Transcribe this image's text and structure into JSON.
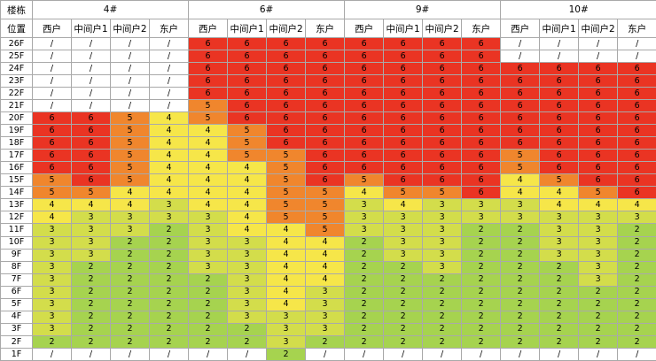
{
  "table": {
    "corner_top": "楼栋",
    "corner_bottom": "位置",
    "buildings": [
      "4#",
      "6#",
      "9#",
      "10#"
    ],
    "units": [
      "西户",
      "中间户1",
      "中间户2",
      "东户"
    ]
  },
  "value_colors": {
    "6": "#ea3423",
    "5": "#f0862d",
    "4": "#f6e649",
    "3": "#d3dd4b",
    "2": "#a6d34f",
    "/": "#ffffff"
  },
  "chart_data": {
    "type": "heatmap",
    "x_groups": [
      "4#",
      "6#",
      "9#",
      "10#"
    ],
    "x_sub": [
      "西户",
      "中间户1",
      "中间户2",
      "东户"
    ],
    "y": [
      "26F",
      "25F",
      "24F",
      "23F",
      "22F",
      "21F",
      "20F",
      "19F",
      "18F",
      "17F",
      "16F",
      "15F",
      "14F",
      "13F",
      "12F",
      "11F",
      "10F",
      "9F",
      "8F",
      "7F",
      "6F",
      "5F",
      "4F",
      "3F",
      "2F",
      "1F"
    ],
    "values": [
      [
        "/",
        "/",
        "/",
        "/",
        "6",
        "6",
        "6",
        "6",
        "6",
        "6",
        "6",
        "6",
        "/",
        "/",
        "/",
        "/"
      ],
      [
        "/",
        "/",
        "/",
        "/",
        "6",
        "6",
        "6",
        "6",
        "6",
        "6",
        "6",
        "6",
        "/",
        "/",
        "/",
        "/"
      ],
      [
        "/",
        "/",
        "/",
        "/",
        "6",
        "6",
        "6",
        "6",
        "6",
        "6",
        "6",
        "6",
        "6",
        "6",
        "6",
        "6"
      ],
      [
        "/",
        "/",
        "/",
        "/",
        "6",
        "6",
        "6",
        "6",
        "6",
        "6",
        "6",
        "6",
        "6",
        "6",
        "6",
        "6"
      ],
      [
        "/",
        "/",
        "/",
        "/",
        "6",
        "6",
        "6",
        "6",
        "6",
        "6",
        "6",
        "6",
        "6",
        "6",
        "6",
        "6"
      ],
      [
        "/",
        "/",
        "/",
        "/",
        "5",
        "6",
        "6",
        "6",
        "6",
        "6",
        "6",
        "6",
        "6",
        "6",
        "6",
        "6"
      ],
      [
        "6",
        "6",
        "5",
        "4",
        "5",
        "6",
        "6",
        "6",
        "6",
        "6",
        "6",
        "6",
        "6",
        "6",
        "6",
        "6"
      ],
      [
        "6",
        "6",
        "5",
        "4",
        "4",
        "5",
        "6",
        "6",
        "6",
        "6",
        "6",
        "6",
        "6",
        "6",
        "6",
        "6"
      ],
      [
        "6",
        "6",
        "5",
        "4",
        "4",
        "5",
        "6",
        "6",
        "6",
        "6",
        "6",
        "6",
        "6",
        "6",
        "6",
        "6"
      ],
      [
        "6",
        "6",
        "5",
        "4",
        "4",
        "5",
        "5",
        "6",
        "6",
        "6",
        "6",
        "6",
        "5",
        "6",
        "6",
        "6"
      ],
      [
        "6",
        "6",
        "5",
        "4",
        "4",
        "4",
        "5",
        "6",
        "6",
        "6",
        "6",
        "6",
        "5",
        "6",
        "6",
        "6"
      ],
      [
        "5",
        "6",
        "5",
        "4",
        "4",
        "4",
        "5",
        "6",
        "5",
        "6",
        "6",
        "6",
        "4",
        "5",
        "6",
        "6"
      ],
      [
        "5",
        "5",
        "4",
        "4",
        "4",
        "4",
        "5",
        "5",
        "4",
        "5",
        "5",
        "6",
        "4",
        "4",
        "5",
        "6"
      ],
      [
        "4",
        "4",
        "4",
        "3",
        "4",
        "4",
        "5",
        "5",
        "3",
        "4",
        "3",
        "3",
        "3",
        "4",
        "4",
        "4"
      ],
      [
        "4",
        "3",
        "3",
        "3",
        "3",
        "4",
        "5",
        "5",
        "3",
        "3",
        "3",
        "3",
        "3",
        "3",
        "3",
        "3"
      ],
      [
        "3",
        "3",
        "3",
        "2",
        "3",
        "4",
        "4",
        "5",
        "3",
        "3",
        "3",
        "2",
        "2",
        "3",
        "3",
        "2"
      ],
      [
        "3",
        "3",
        "2",
        "2",
        "3",
        "3",
        "4",
        "4",
        "2",
        "3",
        "3",
        "2",
        "2",
        "3",
        "3",
        "2"
      ],
      [
        "3",
        "3",
        "2",
        "2",
        "3",
        "3",
        "4",
        "4",
        "2",
        "3",
        "3",
        "2",
        "2",
        "3",
        "3",
        "2"
      ],
      [
        "3",
        "2",
        "2",
        "2",
        "3",
        "3",
        "4",
        "4",
        "2",
        "2",
        "3",
        "2",
        "2",
        "2",
        "3",
        "2"
      ],
      [
        "3",
        "2",
        "2",
        "2",
        "2",
        "3",
        "4",
        "4",
        "2",
        "2",
        "2",
        "2",
        "2",
        "2",
        "3",
        "2"
      ],
      [
        "3",
        "2",
        "2",
        "2",
        "2",
        "3",
        "4",
        "3",
        "2",
        "2",
        "2",
        "2",
        "2",
        "2",
        "2",
        "2"
      ],
      [
        "3",
        "2",
        "2",
        "2",
        "2",
        "3",
        "4",
        "3",
        "2",
        "2",
        "2",
        "2",
        "2",
        "2",
        "2",
        "2"
      ],
      [
        "3",
        "2",
        "2",
        "2",
        "2",
        "3",
        "3",
        "3",
        "2",
        "2",
        "2",
        "2",
        "2",
        "2",
        "2",
        "2"
      ],
      [
        "3",
        "2",
        "2",
        "2",
        "2",
        "2",
        "3",
        "3",
        "2",
        "2",
        "2",
        "2",
        "2",
        "2",
        "2",
        "2"
      ],
      [
        "2",
        "2",
        "2",
        "2",
        "2",
        "2",
        "3",
        "2",
        "2",
        "2",
        "2",
        "2",
        "2",
        "2",
        "2",
        "2"
      ],
      [
        "/",
        "/",
        "/",
        "/",
        "/",
        "/",
        "2",
        "/",
        "/",
        "/",
        "/",
        "/",
        "/",
        "/",
        "/",
        "/"
      ]
    ]
  }
}
